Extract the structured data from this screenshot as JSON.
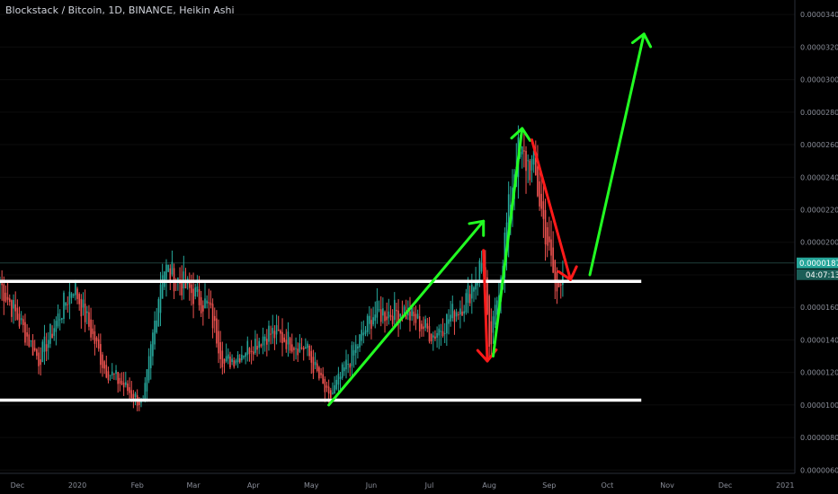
{
  "title": "Blockstack / Bitcoin, 1D, BINANCE, Heikin Ashi",
  "colors": {
    "background": "#000000",
    "up": "#26a69a",
    "down": "#ef5350",
    "support_line": "#ffffff",
    "arrow_green": "#22ff22",
    "arrow_red": "#ff1a1a",
    "price_tag": "#26a69a",
    "axis_text": "#8a8e99"
  },
  "price_tag": {
    "price": "0.00001873",
    "countdown": "04:07:13"
  },
  "chart_data": {
    "type": "candlestick",
    "y_axis": {
      "ticks": [
        "0.00003400",
        "0.00003200",
        "0.00003000",
        "0.00002800",
        "0.00002600",
        "0.00002400",
        "0.00002200",
        "0.00002000",
        "0.00001800",
        "0.00001600",
        "0.00001400",
        "0.00001200",
        "0.00001000",
        "0.00000800",
        "0.00000600"
      ],
      "range": [
        5.8e-06,
        3.5e-05
      ]
    },
    "x_axis": {
      "ticks": [
        "Dec",
        "2020",
        "Feb",
        "Mar",
        "Apr",
        "May",
        "Jun",
        "Jul",
        "Aug",
        "Sep",
        "Oct",
        "Nov",
        "Dec",
        "2021"
      ],
      "start": "2019-11-22",
      "end": "2021-01-06"
    },
    "current_price": 1.873e-05,
    "series_summary": [
      {
        "date": "2019-11-22",
        "value": 1.75e-05
      },
      {
        "date": "2019-12-12",
        "value": 1.28e-05
      },
      {
        "date": "2019-12-30",
        "value": 1.74e-05
      },
      {
        "date": "2020-01-15",
        "value": 1.23e-05
      },
      {
        "date": "2020-02-04",
        "value": 1e-05
      },
      {
        "date": "2020-02-14",
        "value": 1.85e-05
      },
      {
        "date": "2020-03-09",
        "value": 1.6e-05
      },
      {
        "date": "2020-03-17",
        "value": 1.25e-05
      },
      {
        "date": "2020-04-09",
        "value": 1.45e-05
      },
      {
        "date": "2020-04-28",
        "value": 1.35e-05
      },
      {
        "date": "2020-05-10",
        "value": 1.03e-05
      },
      {
        "date": "2020-06-02",
        "value": 1.56e-05
      },
      {
        "date": "2020-06-18",
        "value": 1.58e-05
      },
      {
        "date": "2020-07-03",
        "value": 1.43e-05
      },
      {
        "date": "2020-07-20",
        "value": 1.65e-05
      },
      {
        "date": "2020-07-29",
        "value": 1.9e-05
      },
      {
        "date": "2020-08-01",
        "value": 1.3e-05
      },
      {
        "date": "2020-08-15",
        "value": 2.55e-05
      },
      {
        "date": "2020-08-24",
        "value": 2.45e-05
      },
      {
        "date": "2020-09-05",
        "value": 1.68e-05
      },
      {
        "date": "2020-09-08",
        "value": 1.873e-05
      }
    ],
    "levels": [
      {
        "price": 1.76e-05,
        "from": "2019-12-01",
        "to": "2020-09-30"
      },
      {
        "price": 1.03e-05,
        "from": "2019-12-01",
        "to": "2020-09-30"
      }
    ],
    "arrows": [
      {
        "color": "green",
        "from": {
          "date": "2020-05-10",
          "price": 1e-05
        },
        "to": {
          "date": "2020-07-29",
          "price": 2.13e-05
        }
      },
      {
        "color": "red",
        "from": {
          "date": "2020-07-29",
          "price": 1.95e-05
        },
        "to": {
          "date": "2020-07-31",
          "price": 1.27e-05
        }
      },
      {
        "color": "green",
        "from": {
          "date": "2020-08-03",
          "price": 1.3e-05
        },
        "to": {
          "date": "2020-08-18",
          "price": 2.7e-05
        }
      },
      {
        "color": "red",
        "from": {
          "date": "2020-08-23",
          "price": 2.63e-05
        },
        "to": {
          "date": "2020-09-12",
          "price": 1.77e-05
        }
      },
      {
        "color": "green",
        "from": {
          "date": "2020-09-22",
          "price": 1.8e-05
        },
        "to": {
          "date": "2020-10-20",
          "price": 3.28e-05
        }
      }
    ]
  }
}
